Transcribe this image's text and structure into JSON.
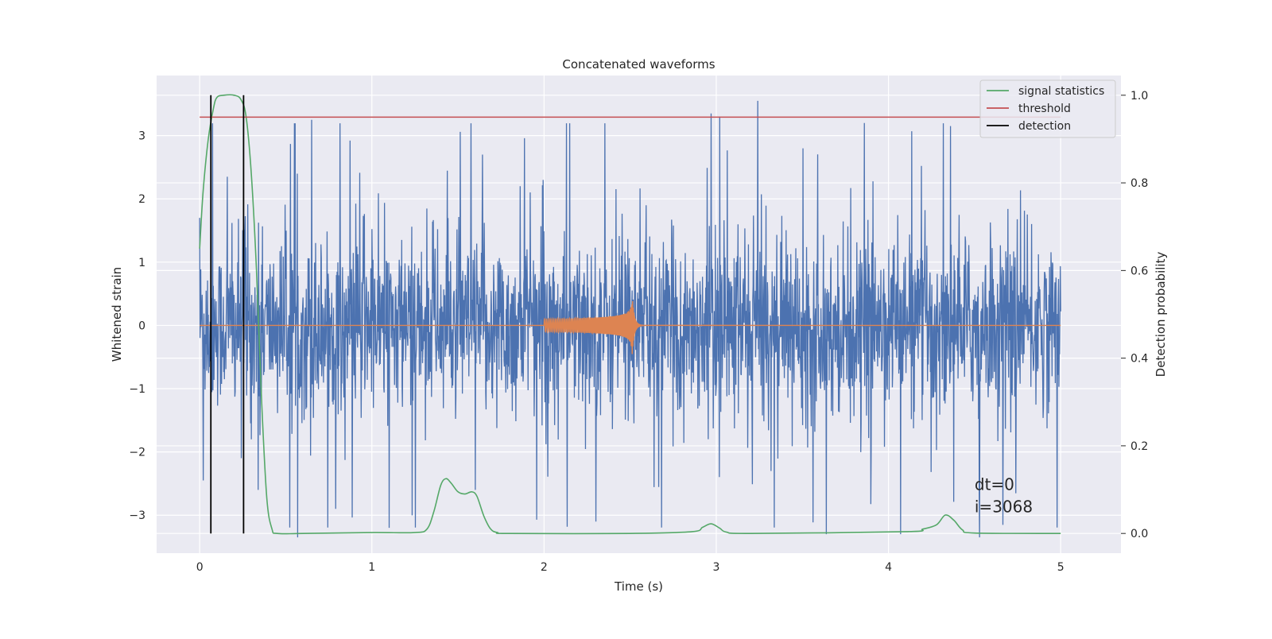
{
  "chart_data": {
    "type": "line",
    "title": "Concatenated waveforms",
    "xlabel": "Time (s)",
    "ylabel": "Whitened strain",
    "y2label": "Detection probability",
    "xlim": [
      -0.25,
      5.35
    ],
    "ylim": [
      -3.6,
      3.95
    ],
    "y2lim": [
      -0.045,
      1.045
    ],
    "x_ticks": [
      0,
      1,
      2,
      3,
      4,
      5
    ],
    "x_tick_labels": [
      "0",
      "1",
      "2",
      "3",
      "4",
      "5"
    ],
    "y_ticks": [
      -3,
      -2,
      -1,
      0,
      1,
      2,
      3
    ],
    "y_tick_labels": [
      "−3",
      "−2",
      "−1",
      "0",
      "1",
      "2",
      "3"
    ],
    "y2_ticks": [
      0.0,
      0.2,
      0.4,
      0.6,
      0.8,
      1.0
    ],
    "y2_tick_labels": [
      "0.0",
      "0.2",
      "0.4",
      "0.6",
      "0.8",
      "1.0"
    ],
    "grid": true,
    "legend_position": "top-right",
    "legend": [
      {
        "name": "signal statistics",
        "color": "#55a868"
      },
      {
        "name": "threshold",
        "color": "#c44e52"
      },
      {
        "name": "detection",
        "color": "#000000"
      }
    ],
    "series": [
      {
        "name": "",
        "axis": "left",
        "color": "#4c72b0",
        "kind": "noise",
        "x_range": [
          0,
          5
        ],
        "typical_amplitude": 0.75,
        "peak_amplitude": 3.55,
        "notable_spikes": [
          [
            0.0,
            1.7
          ],
          [
            0.02,
            -2.45
          ],
          [
            0.16,
            2.35
          ],
          [
            0.3,
            -1.8
          ],
          [
            0.34,
            -2.6
          ],
          [
            0.57,
            -3.35
          ],
          [
            0.65,
            3.25
          ],
          [
            0.79,
            -2.9
          ],
          [
            1.1,
            -3.2
          ],
          [
            1.6,
            -2.6
          ],
          [
            2.3,
            -3.1
          ],
          [
            2.97,
            3.35
          ],
          [
            3.02,
            3.3
          ],
          [
            3.24,
            3.55
          ],
          [
            3.64,
            -3.3
          ],
          [
            3.86,
            3.2
          ],
          [
            4.07,
            -3.3
          ],
          [
            4.36,
            3.15
          ],
          [
            4.53,
            -3.35
          ]
        ]
      },
      {
        "name": "",
        "axis": "left",
        "color": "#dd8452",
        "kind": "chirp",
        "x_range": [
          0,
          5
        ],
        "chirp_start": 2.0,
        "chirp_merger": 2.51,
        "start_amplitude": 0.1,
        "peak_amplitude": 0.55
      },
      {
        "name": "signal statistics",
        "axis": "right",
        "color": "#55a868",
        "kind": "line",
        "x": [
          0.0,
          0.02,
          0.05,
          0.08,
          0.1,
          0.14,
          0.2,
          0.24,
          0.27,
          0.3,
          0.33,
          0.36,
          0.39,
          0.42,
          0.45,
          0.6,
          1.0,
          1.25,
          1.32,
          1.36,
          1.4,
          1.43,
          1.46,
          1.5,
          1.54,
          1.58,
          1.61,
          1.65,
          1.69,
          1.73,
          1.8,
          2.5,
          2.86,
          2.92,
          2.97,
          3.02,
          3.06,
          3.2,
          4.1,
          4.2,
          4.28,
          4.33,
          4.38,
          4.43,
          4.5,
          5.0
        ],
        "y": [
          0.65,
          0.78,
          0.9,
          0.97,
          0.995,
          1.0,
          1.0,
          0.99,
          0.95,
          0.82,
          0.6,
          0.3,
          0.08,
          0.01,
          0.0,
          0.0,
          0.002,
          0.002,
          0.01,
          0.05,
          0.11,
          0.125,
          0.115,
          0.095,
          0.09,
          0.095,
          0.085,
          0.04,
          0.01,
          0.002,
          0.0,
          0.0,
          0.004,
          0.014,
          0.022,
          0.012,
          0.003,
          0.0,
          0.004,
          0.01,
          0.02,
          0.042,
          0.03,
          0.008,
          0.001,
          0.0
        ]
      },
      {
        "name": "threshold",
        "axis": "right",
        "color": "#c44e52",
        "kind": "line",
        "x": [
          0.0,
          5.0
        ],
        "y": [
          0.95,
          0.95
        ]
      },
      {
        "name": "detection",
        "axis": "right",
        "color": "#000000",
        "kind": "vline",
        "x": [
          0.065,
          0.255
        ],
        "y": [
          0.0,
          1.0
        ]
      }
    ],
    "annotations": [
      {
        "text": "dt=0",
        "x": 4.5,
        "y": -2.6
      },
      {
        "text": "i=3068",
        "x": 4.5,
        "y": -2.95
      }
    ]
  }
}
